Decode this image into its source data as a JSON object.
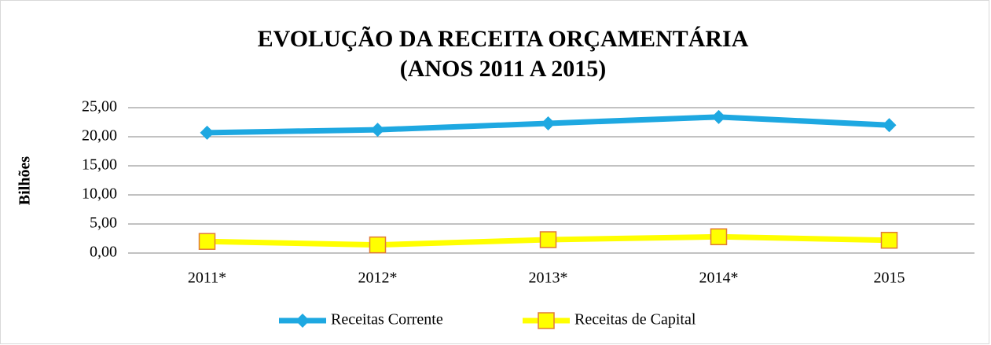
{
  "chart_data": {
    "type": "line",
    "title": "EVOLUÇÃO DA RECEITA ORÇAMENTÁRIA",
    "subtitle": "(ANOS 2011 A 2015)",
    "y_label": "Bilhões",
    "categories": [
      "2011*",
      "2012*",
      "2013*",
      "2014*",
      "2015"
    ],
    "series": [
      {
        "name": "Receitas Corrente",
        "color": "#1ea8e1",
        "marker": "diamond",
        "values": [
          20.7,
          21.2,
          22.3,
          23.4,
          22.0
        ]
      },
      {
        "name": "Receitas de Capital",
        "color": "#ffff00",
        "marker": "square",
        "marker_edge": "#e07b39",
        "values": [
          2.0,
          1.4,
          2.3,
          2.8,
          2.2
        ]
      }
    ],
    "ylim": [
      0,
      25
    ],
    "yticks": [
      {
        "value": 0,
        "label": "0,00"
      },
      {
        "value": 5,
        "label": "5,00"
      },
      {
        "value": 10,
        "label": "10,00"
      },
      {
        "value": 15,
        "label": "15,00"
      },
      {
        "value": 20,
        "label": "20,00"
      },
      {
        "value": 25,
        "label": "25,00"
      }
    ],
    "grid": true,
    "legend": "bottom"
  }
}
